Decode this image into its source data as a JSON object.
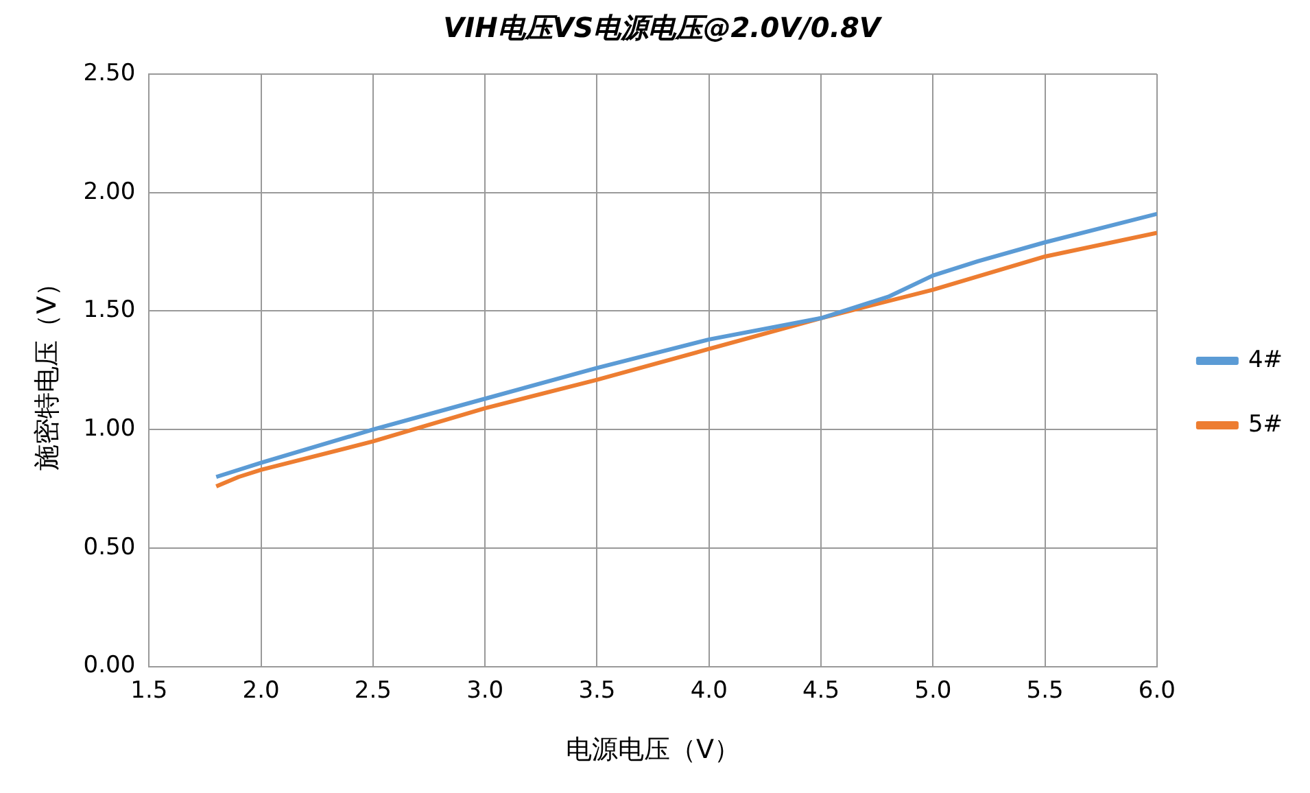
{
  "chart_data": {
    "type": "line",
    "title": "VIH电压VS电源电压@2.0V/0.8V",
    "xlabel": "电源电压（V）",
    "ylabel": "施密特电压（V）",
    "series": [
      {
        "name": "4#",
        "color": "#5b9bd5",
        "x": [
          1.8,
          2.0,
          2.5,
          3.0,
          3.5,
          4.0,
          4.5,
          4.8,
          5.0,
          5.2,
          5.5,
          6.0
        ],
        "values": [
          0.8,
          0.86,
          1.0,
          1.13,
          1.26,
          1.38,
          1.47,
          1.56,
          1.65,
          1.71,
          1.79,
          1.91
        ]
      },
      {
        "name": "5#",
        "color": "#ed7d31",
        "x": [
          1.8,
          1.9,
          2.0,
          2.5,
          3.0,
          3.5,
          4.0,
          4.5,
          5.0,
          5.5,
          6.0
        ],
        "values": [
          0.76,
          0.8,
          0.83,
          0.95,
          1.09,
          1.21,
          1.34,
          1.47,
          1.59,
          1.73,
          1.83
        ]
      }
    ],
    "xlim": [
      1.5,
      6.0
    ],
    "xticks": [
      {
        "value": 1.5,
        "label": "1.5"
      },
      {
        "value": 2,
        "label": "2.0"
      },
      {
        "value": 2.5,
        "label": "2.5"
      },
      {
        "value": 3,
        "label": "3.0"
      },
      {
        "value": 3.5,
        "label": "3.5"
      },
      {
        "value": 4,
        "label": "4.0"
      },
      {
        "value": 4.5,
        "label": "4.5"
      },
      {
        "value": 5,
        "label": "5.0"
      },
      {
        "value": 5.5,
        "label": "5.5"
      },
      {
        "value": 6,
        "label": "6.0"
      }
    ],
    "ylim": [
      0,
      2.5
    ],
    "yticks": [
      {
        "value": 0,
        "label": "0.00"
      },
      {
        "value": 0.5,
        "label": "0.50"
      },
      {
        "value": 1,
        "label": "1.00"
      },
      {
        "value": 1.5,
        "label": "1.50"
      },
      {
        "value": 2,
        "label": "2.00"
      },
      {
        "value": 2.5,
        "label": "2.50"
      }
    ],
    "grid": true,
    "legend": "right",
    "marker": "none",
    "line_style": "solid"
  }
}
